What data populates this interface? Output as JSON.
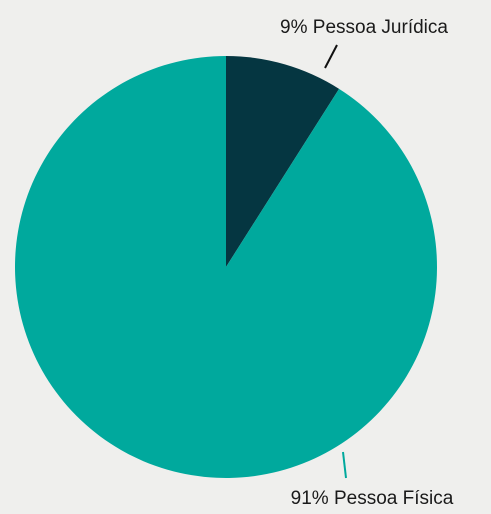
{
  "chart_data": {
    "type": "pie",
    "categories": [
      "Pessoa Jurídica",
      "Pessoa Física"
    ],
    "values": [
      9,
      91
    ],
    "value_labels": [
      "9%",
      "91%"
    ],
    "colors": [
      "#053641",
      "#00a99d"
    ],
    "start_angle": 0,
    "direction": "clockwise"
  }
}
